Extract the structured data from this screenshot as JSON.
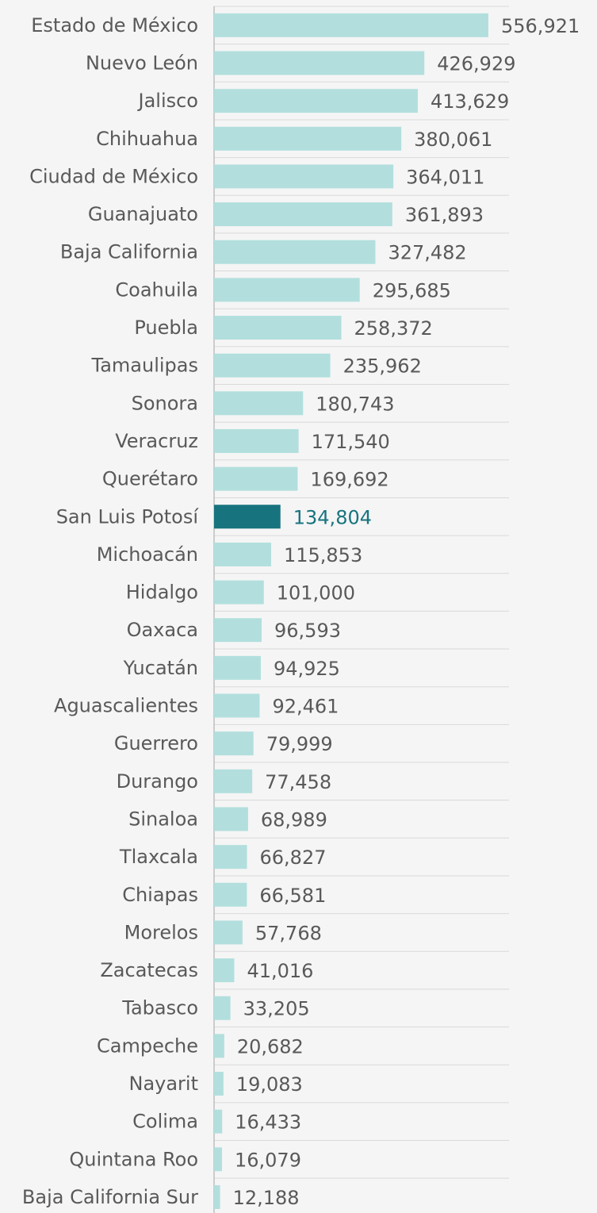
{
  "chart_data": {
    "type": "barh",
    "categories": [
      "Estado de México",
      "Nuevo León",
      "Jalisco",
      "Chihuahua",
      "Ciudad de México",
      "Guanajuato",
      "Baja California",
      "Coahuila",
      "Puebla",
      "Tamaulipas",
      "Sonora",
      "Veracruz",
      "Querétaro",
      "San Luis Potosí",
      "Michoacán",
      "Hidalgo",
      "Oaxaca",
      "Yucatán",
      "Aguascalientes",
      "Guerrero",
      "Durango",
      "Sinaloa",
      "Tlaxcala",
      "Chiapas",
      "Morelos",
      "Zacatecas",
      "Tabasco",
      "Campeche",
      "Nayarit",
      "Colima",
      "Quintana Roo",
      "Baja California Sur"
    ],
    "values": [
      556921,
      426929,
      413629,
      380061,
      364011,
      361893,
      327482,
      295685,
      258372,
      235962,
      180743,
      171540,
      169692,
      134804,
      115853,
      101000,
      96593,
      94925,
      92461,
      79999,
      77458,
      68989,
      66827,
      66581,
      57768,
      41016,
      33205,
      20682,
      19083,
      16433,
      16079,
      12188
    ],
    "value_labels": [
      "556,921",
      "426,929",
      "413,629",
      "380,061",
      "364,011",
      "361,893",
      "327,482",
      "295,685",
      "258,372",
      "235,962",
      "180,743",
      "171,540",
      "169,692",
      "134,804",
      "115,853",
      "101,000",
      "96,593",
      "94,925",
      "92,461",
      "79,999",
      "77,458",
      "68,989",
      "66,827",
      "66,581",
      "57,768",
      "41,016",
      "33,205",
      "20,682",
      "19,083",
      "16,433",
      "16,079",
      "12,188"
    ],
    "colors": [
      "#b2dfdd",
      "#b2dfdd",
      "#b2dfdd",
      "#b2dfdd",
      "#b2dfdd",
      "#b2dfdd",
      "#b2dfdd",
      "#b2dfdd",
      "#b2dfdd",
      "#b2dfdd",
      "#b2dfdd",
      "#b2dfdd",
      "#b2dfdd",
      "#17747f",
      "#b2dfdd",
      "#b2dfdd",
      "#b2dfdd",
      "#b2dfdd",
      "#b2dfdd",
      "#b2dfdd",
      "#b2dfdd",
      "#b2dfdd",
      "#b2dfdd",
      "#b2dfdd",
      "#b2dfdd",
      "#b2dfdd",
      "#b2dfdd",
      "#b2dfdd",
      "#b2dfdd",
      "#b2dfdd",
      "#b2dfdd",
      "#b2dfdd"
    ],
    "grid": true
  }
}
